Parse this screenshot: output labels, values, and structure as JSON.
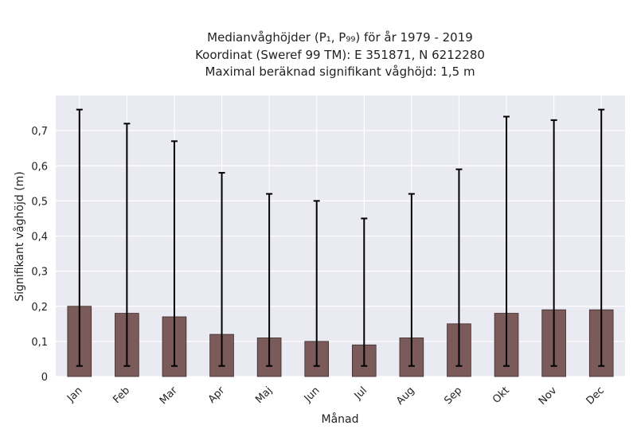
{
  "chart_data": {
    "type": "bar",
    "title_lines": [
      "Medianvåghöjder (P₁, P₉₉) för år 1979 - 2019",
      "Koordinat (Sweref 99 TM): E 351871, N 6212280",
      "Maximal beräknad signifikant våghöjd: 1,5 m"
    ],
    "xlabel": "Månad",
    "ylabel": "Signifikant våghöjd (m)",
    "categories": [
      "Jan",
      "Feb",
      "Mar",
      "Apr",
      "Maj",
      "Jun",
      "Jul",
      "Aug",
      "Sep",
      "Okt",
      "Nov",
      "Dec"
    ],
    "values": [
      0.2,
      0.18,
      0.17,
      0.12,
      0.11,
      0.1,
      0.09,
      0.11,
      0.15,
      0.18,
      0.19,
      0.19
    ],
    "error_low": [
      0.03,
      0.03,
      0.03,
      0.03,
      0.03,
      0.03,
      0.03,
      0.03,
      0.03,
      0.03,
      0.03,
      0.03
    ],
    "error_high": [
      0.76,
      0.72,
      0.67,
      0.58,
      0.52,
      0.5,
      0.45,
      0.52,
      0.59,
      0.74,
      0.73,
      0.76
    ],
    "ylim": [
      0,
      0.8
    ],
    "yticks": [
      0,
      0.1,
      0.2,
      0.3,
      0.4,
      0.5,
      0.6,
      0.7
    ],
    "ytick_labels": [
      "0",
      "0,1",
      "0,2",
      "0,3",
      "0,4",
      "0,5",
      "0,6",
      "0,7"
    ],
    "grid": true,
    "colors": {
      "bar": "#7b5a5a",
      "bar_edge": "#3b2a2a",
      "background": "#eaeaf2",
      "grid": "#ffffff",
      "error": "#000000"
    }
  }
}
